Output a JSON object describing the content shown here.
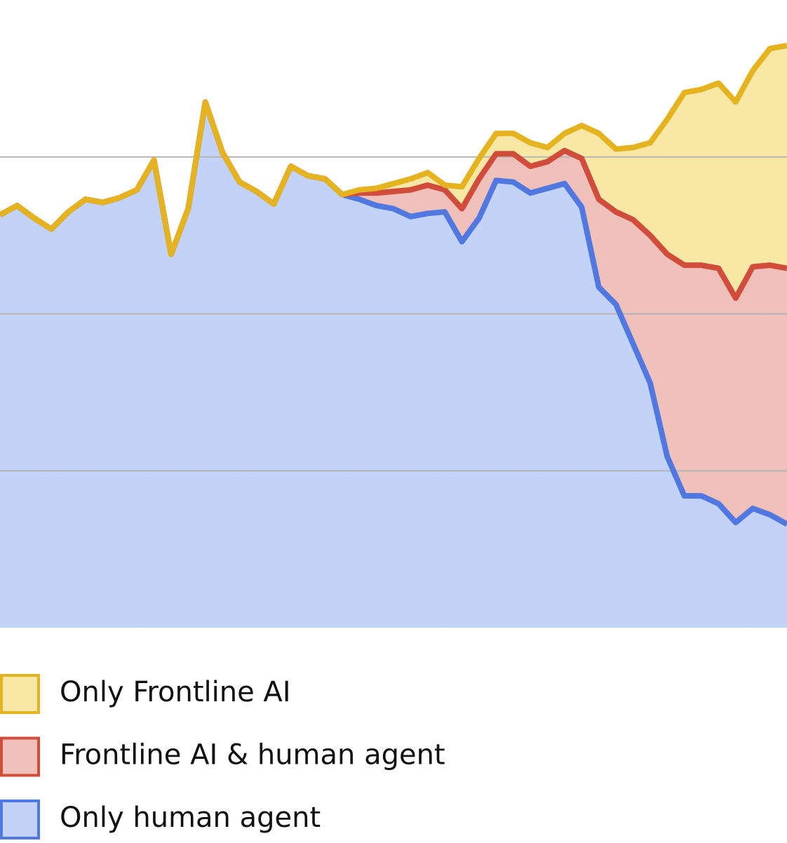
{
  "chart_data": {
    "type": "stacked_area",
    "categories": [
      null,
      null,
      null,
      null,
      null,
      null,
      null,
      null,
      null,
      null,
      null,
      null,
      null,
      null,
      null,
      null,
      null,
      null,
      null,
      null,
      null,
      null,
      null,
      null,
      null,
      null,
      null,
      null,
      null,
      null,
      null,
      null,
      null,
      null,
      null,
      null,
      null,
      null,
      null,
      null,
      null,
      null,
      null,
      null,
      null,
      null,
      null
    ],
    "ylim": [
      0,
      4
    ],
    "yticks": [
      1,
      2,
      3
    ],
    "grid": true,
    "series": [
      {
        "name": "Only human agent",
        "color": "#5078e0",
        "fill": "#c2d3f7",
        "values": [
          2.63,
          2.69,
          2.61,
          2.54,
          2.65,
          2.73,
          2.71,
          2.74,
          2.79,
          2.98,
          2.38,
          2.67,
          3.35,
          3.03,
          2.84,
          2.78,
          2.7,
          2.94,
          2.88,
          2.86,
          2.76,
          2.73,
          2.69,
          2.67,
          2.62,
          2.64,
          2.65,
          2.46,
          2.61,
          2.85,
          2.84,
          2.77,
          2.8,
          2.83,
          2.68,
          2.17,
          2.06,
          1.81,
          1.56,
          1.09,
          0.84,
          0.84,
          0.79,
          0.67,
          0.76,
          0.72,
          0.66
        ]
      },
      {
        "name": "Frontline AI & human agent",
        "color": "#d24c3c",
        "fill": "#f0c0bb",
        "values": [
          0,
          0,
          0,
          0,
          0,
          0,
          0,
          0,
          0,
          0,
          0,
          0,
          0,
          0,
          0,
          0,
          0,
          0,
          0,
          0,
          0.0,
          0.04,
          0.08,
          0.11,
          0.17,
          0.18,
          0.14,
          0.21,
          0.25,
          0.17,
          0.18,
          0.17,
          0.17,
          0.21,
          0.31,
          0.56,
          0.59,
          0.79,
          0.94,
          1.29,
          1.47,
          1.47,
          1.5,
          1.43,
          1.54,
          1.59,
          1.63
        ]
      },
      {
        "name": "Only Frontline AI",
        "color": "#e6b320",
        "fill": "#f9e8a5",
        "values": [
          0,
          0,
          0,
          0,
          0,
          0,
          0,
          0,
          0,
          0,
          0,
          0,
          0,
          0,
          0,
          0,
          0,
          0,
          0,
          0,
          0,
          0.02,
          0.03,
          0.05,
          0.07,
          0.08,
          0.03,
          0.14,
          0.13,
          0.13,
          0.13,
          0.15,
          0.09,
          0.11,
          0.21,
          0.42,
          0.4,
          0.46,
          0.59,
          0.86,
          1.1,
          1.12,
          1.18,
          1.25,
          1.25,
          1.38,
          1.42
        ]
      }
    ]
  }
}
